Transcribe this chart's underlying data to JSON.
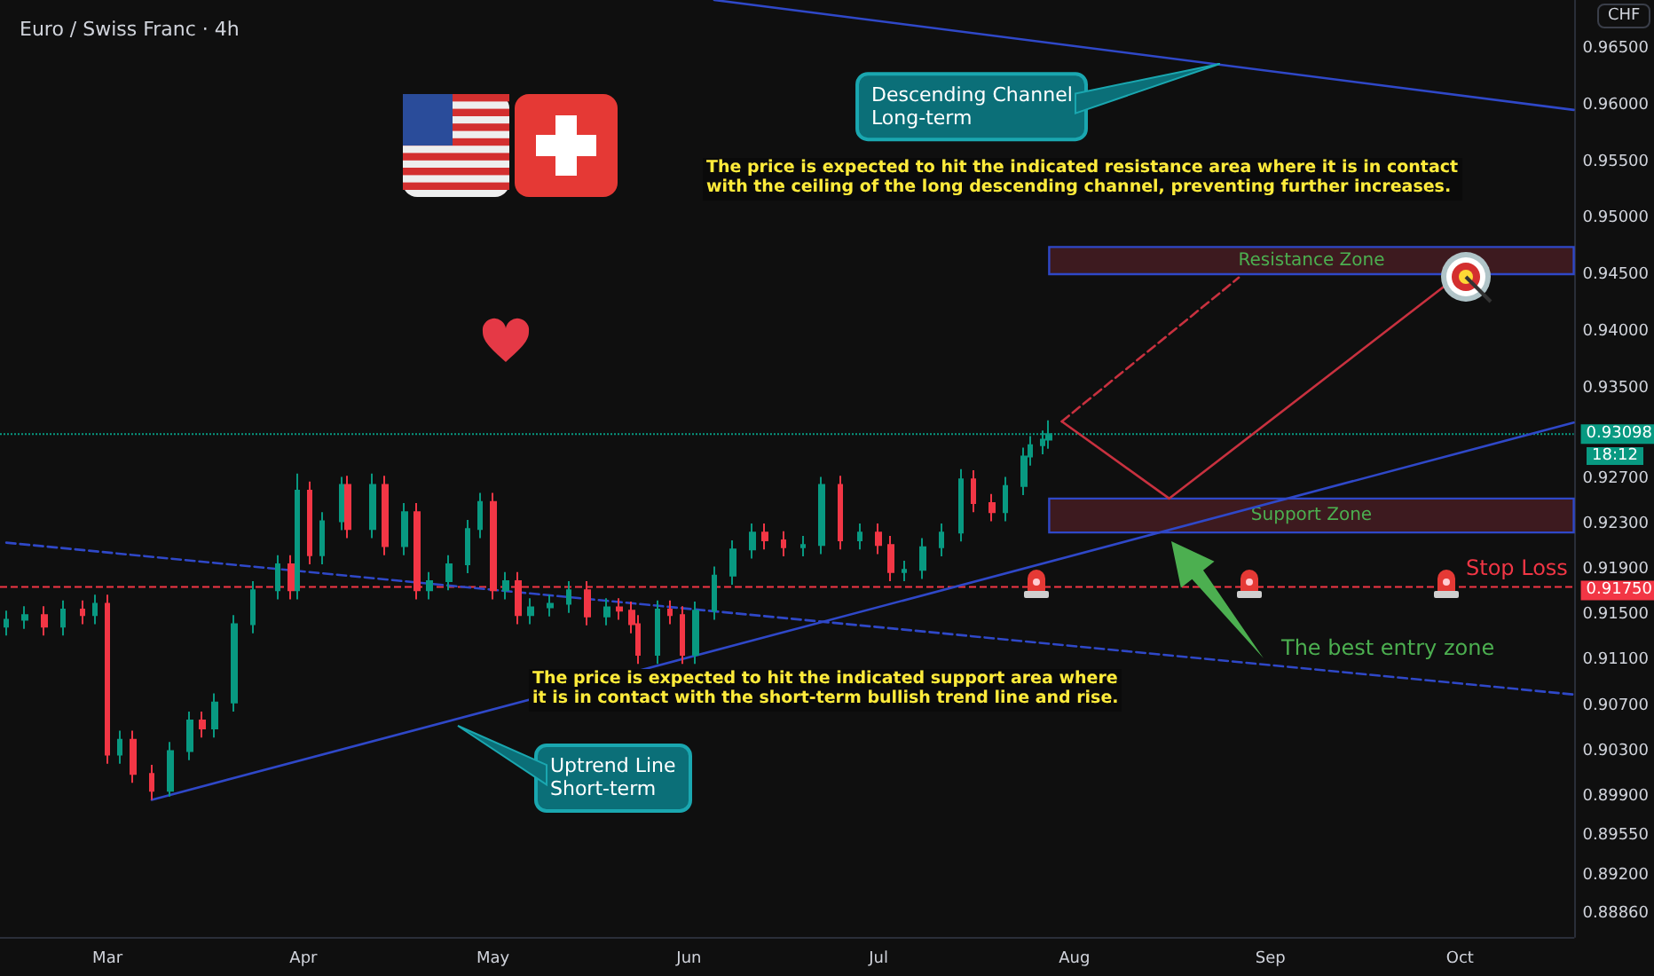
{
  "chart_data": {
    "type": "candlestick",
    "title": "Euro / Swiss Franc · 4h",
    "ylabel": "CHF",
    "x": [
      "--02-13",
      "--02-16",
      "--02-19",
      "--02-22",
      "--02-25",
      "--02-27",
      "--03-01",
      "--03-03",
      "--03-05",
      "--03-08",
      "--03-11",
      "--03-14",
      "--03-16",
      "--03-18",
      "--03-21",
      "--03-24",
      "--03-28",
      "--03-30",
      "--03-31",
      "--04-02",
      "--04-04",
      "--04-07",
      "--04-08",
      "--04-12",
      "--04-14",
      "--04-17",
      "--04-19",
      "--04-21",
      "--04-24",
      "--04-27",
      "--04-29",
      "--05-01",
      "--05-03",
      "--05-05",
      "--05-07",
      "--05-10",
      "--05-13",
      "--05-16",
      "--05-19",
      "--05-21",
      "--05-23",
      "--05-24",
      "--05-27",
      "--05-29",
      "--05-31",
      "--06-02",
      "--06-05",
      "--06-08",
      "--06-11",
      "--06-13",
      "--06-16",
      "--06-19",
      "--06-22",
      "--06-25",
      "--06-28",
      "--07-01",
      "--07-03",
      "--07-05",
      "--07-08",
      "--07-11",
      "--07-14",
      "--07-16",
      "--07-19",
      "--07-21",
      "--07-24",
      "--07-25",
      "--07-27",
      "--07-28"
    ],
    "ohlc": [
      [
        0.914,
        0.9154,
        0.9132,
        0.9146
      ],
      [
        0.9146,
        0.9158,
        0.9138,
        0.915
      ],
      [
        0.915,
        0.9158,
        0.9132,
        0.914
      ],
      [
        0.914,
        0.9163,
        0.9132,
        0.9155
      ],
      [
        0.9155,
        0.9163,
        0.9142,
        0.915
      ],
      [
        0.915,
        0.9168,
        0.9142,
        0.916
      ],
      [
        0.916,
        0.9168,
        0.9019,
        0.9027
      ],
      [
        0.9027,
        0.9048,
        0.9019,
        0.904
      ],
      [
        0.904,
        0.9048,
        0.9002,
        0.901
      ],
      [
        0.901,
        0.9018,
        0.8987,
        0.8995
      ],
      [
        0.8995,
        0.9038,
        0.899,
        0.903
      ],
      [
        0.903,
        0.9065,
        0.9022,
        0.9057
      ],
      [
        0.9057,
        0.9065,
        0.9042,
        0.905
      ],
      [
        0.905,
        0.9081,
        0.9042,
        0.9073
      ],
      [
        0.9073,
        0.915,
        0.9065,
        0.9142
      ],
      [
        0.9142,
        0.918,
        0.9134,
        0.9172
      ],
      [
        0.9172,
        0.9203,
        0.9164,
        0.9195
      ],
      [
        0.9195,
        0.9203,
        0.9164,
        0.9172
      ],
      [
        0.9172,
        0.9275,
        0.9164,
        0.926
      ],
      [
        0.926,
        0.9268,
        0.9195,
        0.9203
      ],
      [
        0.9203,
        0.9241,
        0.9195,
        0.9233
      ],
      [
        0.9233,
        0.9272,
        0.9225,
        0.9265
      ],
      [
        0.9265,
        0.9273,
        0.9218,
        0.9226
      ],
      [
        0.9226,
        0.9275,
        0.9218,
        0.9265
      ],
      [
        0.9265,
        0.9273,
        0.9203,
        0.9211
      ],
      [
        0.9211,
        0.9249,
        0.9203,
        0.9241
      ],
      [
        0.9241,
        0.9249,
        0.9164,
        0.9172
      ],
      [
        0.9172,
        0.9188,
        0.9164,
        0.918
      ],
      [
        0.918,
        0.9203,
        0.9172,
        0.9195
      ],
      [
        0.9195,
        0.9234,
        0.9187,
        0.9226
      ],
      [
        0.9226,
        0.9258,
        0.9218,
        0.925
      ],
      [
        0.925,
        0.9258,
        0.9164,
        0.9172
      ],
      [
        0.9172,
        0.9188,
        0.9164,
        0.918
      ],
      [
        0.918,
        0.9188,
        0.9142,
        0.915
      ],
      [
        0.915,
        0.9165,
        0.9142,
        0.9157
      ],
      [
        0.9157,
        0.9168,
        0.9149,
        0.916
      ],
      [
        0.916,
        0.918,
        0.9152,
        0.9172
      ],
      [
        0.9172,
        0.918,
        0.9141,
        0.9149
      ],
      [
        0.9149,
        0.9165,
        0.9141,
        0.9157
      ],
      [
        0.9157,
        0.9165,
        0.9146,
        0.9154
      ],
      [
        0.9154,
        0.9162,
        0.9134,
        0.9142
      ],
      [
        0.9142,
        0.915,
        0.9107,
        0.9115
      ],
      [
        0.9115,
        0.9163,
        0.9107,
        0.9155
      ],
      [
        0.9155,
        0.9163,
        0.9142,
        0.915
      ],
      [
        0.915,
        0.9158,
        0.9107,
        0.9115
      ],
      [
        0.9115,
        0.9162,
        0.9107,
        0.9154
      ],
      [
        0.9154,
        0.9193,
        0.9146,
        0.9185
      ],
      [
        0.9185,
        0.9216,
        0.9177,
        0.9208
      ],
      [
        0.9208,
        0.9231,
        0.92,
        0.9223
      ],
      [
        0.9223,
        0.9231,
        0.9208,
        0.9216
      ],
      [
        0.9216,
        0.9224,
        0.9202,
        0.921
      ],
      [
        0.921,
        0.922,
        0.9202,
        0.9212
      ],
      [
        0.9212,
        0.9272,
        0.9204,
        0.9265
      ],
      [
        0.9265,
        0.9273,
        0.9208,
        0.9216
      ],
      [
        0.9216,
        0.9231,
        0.9208,
        0.9223
      ],
      [
        0.9223,
        0.9231,
        0.9204,
        0.9212
      ],
      [
        0.9212,
        0.922,
        0.918,
        0.9188
      ],
      [
        0.9188,
        0.9198,
        0.918,
        0.919
      ],
      [
        0.919,
        0.9218,
        0.9182,
        0.921
      ],
      [
        0.921,
        0.9231,
        0.9202,
        0.9223
      ],
      [
        0.9223,
        0.9279,
        0.9215,
        0.927
      ],
      [
        0.927,
        0.9278,
        0.9241,
        0.9249
      ],
      [
        0.9249,
        0.9257,
        0.9233,
        0.9241
      ],
      [
        0.9241,
        0.9272,
        0.9233,
        0.9264
      ],
      [
        0.9264,
        0.9298,
        0.9256,
        0.929
      ],
      [
        0.929,
        0.9308,
        0.9282,
        0.93
      ],
      [
        0.93,
        0.9313,
        0.9292,
        0.9305
      ],
      [
        0.9305,
        0.9322,
        0.9297,
        0.93098
      ]
    ],
    "series": [
      {
        "type": "line",
        "x": [
          "--06-05",
          "--10-19"
        ],
        "values": [
          0.9693,
          0.9596
        ],
        "color": "#2f48c8",
        "line_style": "solid"
      },
      {
        "type": "line",
        "x": [
          "--02-13",
          "--10-19"
        ],
        "values": [
          0.9214,
          0.908
        ],
        "color": "#2f48c8",
        "line_style": "dashed"
      },
      {
        "type": "line",
        "x": [
          "--03-08",
          "--10-19"
        ],
        "values": [
          0.8987,
          0.932
        ],
        "color": "#2f48c8",
        "line_style": "solid"
      },
      {
        "type": "line",
        "x": [
          "--07-30",
          "--08-16",
          "--10-01"
        ],
        "values": [
          0.9321,
          0.9253,
          0.9451
        ],
        "color": "#c8313f",
        "line_style": "solid"
      },
      {
        "type": "line",
        "x": [
          "--07-30",
          "--08-27"
        ],
        "values": [
          0.9321,
          0.9448
        ],
        "color": "#c8313f",
        "line_style": "dashed"
      }
    ],
    "xlim": [
      "--02-12",
      "--10-19"
    ],
    "xticks": [
      {
        "value": "--03-01",
        "label": "Mar"
      },
      {
        "value": "--04-01",
        "label": "Apr"
      },
      {
        "value": "--05-01",
        "label": "May"
      },
      {
        "value": "--06-01",
        "label": "Jun"
      },
      {
        "value": "--07-01",
        "label": "Jul"
      },
      {
        "value": "--08-01",
        "label": "Aug"
      },
      {
        "value": "--09-01",
        "label": "Sep"
      },
      {
        "value": "--10-01",
        "label": "Oct"
      }
    ],
    "ylim": [
      0.8866,
      0.9693
    ],
    "yticks": [
      {
        "value": 0.965,
        "label": "0.96500"
      },
      {
        "value": 0.96,
        "label": "0.96000"
      },
      {
        "value": 0.955,
        "label": "0.95500"
      },
      {
        "value": 0.95,
        "label": "0.95000"
      },
      {
        "value": 0.945,
        "label": "0.94500"
      },
      {
        "value": 0.94,
        "label": "0.94000"
      },
      {
        "value": 0.935,
        "label": "0.93500"
      },
      {
        "value": 0.927,
        "label": "0.92700"
      },
      {
        "value": 0.923,
        "label": "0.92300"
      },
      {
        "value": 0.919,
        "label": "0.91900"
      },
      {
        "value": 0.915,
        "label": "0.91500"
      },
      {
        "value": 0.911,
        "label": "0.91100"
      },
      {
        "value": 0.907,
        "label": "0.90700"
      },
      {
        "value": 0.903,
        "label": "0.90300"
      },
      {
        "value": 0.899,
        "label": "0.89900"
      },
      {
        "value": 0.8955,
        "label": "0.89550"
      },
      {
        "value": 0.892,
        "label": "0.89200"
      },
      {
        "value": 0.8886,
        "label": "0.88860"
      }
    ],
    "bands": [
      {
        "axis": "y",
        "from": 0.9451,
        "to": 0.9475,
        "label": "Resistance Zone",
        "color": "#3d1a1f"
      },
      {
        "axis": "y",
        "from": 0.9223,
        "to": 0.9253,
        "label": "Support Zone",
        "color": "#3d1a1f"
      }
    ],
    "ref_lines": [
      {
        "axis": "y",
        "value": 0.93098,
        "label": "0.93098",
        "color": "#089981",
        "line_style": "dotted"
      },
      {
        "axis": "y",
        "value": 0.9175,
        "label": "0.91750",
        "color": "#f23645",
        "line_style": "dashed"
      }
    ],
    "annotations": [
      {
        "text": "Descending Channel\nLong-term",
        "x": "--08-24",
        "y": 0.9636
      },
      "Uptrend Line\nShort-term",
      "The price is expected to hit the indicated resistance area where it is in contact\nwith the ceiling of the long descending channel, preventing further increases.",
      "The price is expected to hit the indicated support area where\nit is in contact with the short-term bullish trend line and rise.",
      "The best entry zone",
      "Stop Loss",
      "18:12"
    ]
  }
}
